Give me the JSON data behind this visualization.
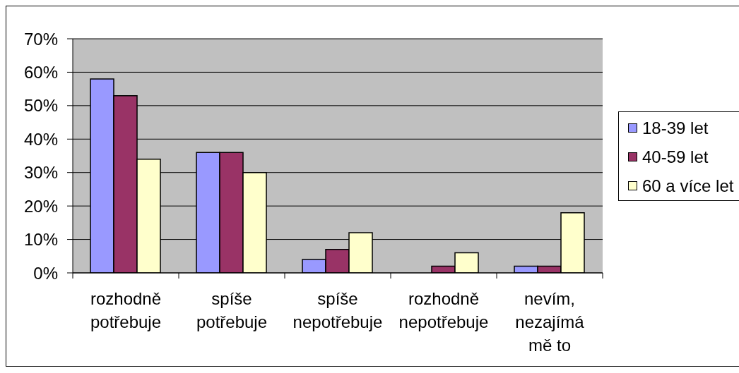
{
  "chart_data": {
    "type": "bar",
    "categories": [
      "rozhodně potřebuje",
      "spíše potřebuje",
      "spíše nepotřebuje",
      "rozhodně nepotřebuje",
      "nevím, nezajímá mě to"
    ],
    "series": [
      {
        "name": "18-39 let",
        "color": "#9999ff",
        "values": [
          58,
          36,
          4,
          0,
          2
        ]
      },
      {
        "name": "40-59 let",
        "color": "#993366",
        "values": [
          53,
          36,
          7,
          2,
          2
        ]
      },
      {
        "name": "60 a více let",
        "color": "#ffffcc",
        "values": [
          34,
          30,
          12,
          6,
          18
        ]
      }
    ],
    "ylim": [
      0,
      70
    ],
    "yticks": [
      {
        "value": 0,
        "label": "0%"
      },
      {
        "value": 10,
        "label": "10%"
      },
      {
        "value": 20,
        "label": "20%"
      },
      {
        "value": 30,
        "label": "30%"
      },
      {
        "value": 40,
        "label": "40%"
      },
      {
        "value": 50,
        "label": "50%"
      },
      {
        "value": 60,
        "label": "60%"
      },
      {
        "value": 70,
        "label": "70%"
      }
    ],
    "grid": "y",
    "legend": "right"
  }
}
